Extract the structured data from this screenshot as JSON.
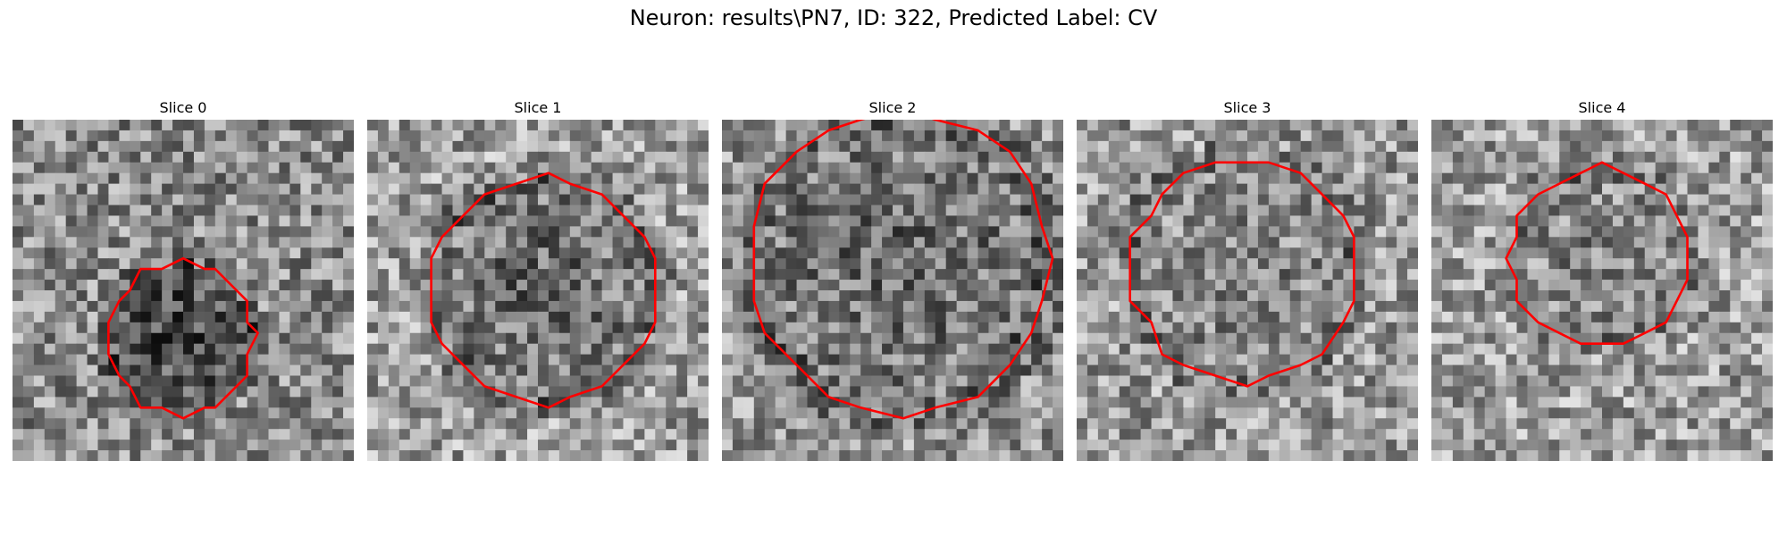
{
  "figure": {
    "title": "Neuron: results\\PN7, ID: 322, Predicted Label: CV"
  },
  "panels": [
    {
      "title": "Slice 0",
      "outline_color": "#ff0000"
    },
    {
      "title": "Slice 1",
      "outline_color": "#ff0000"
    },
    {
      "title": "Slice 2",
      "outline_color": "#ff0000"
    },
    {
      "title": "Slice 3",
      "outline_color": "#ff0000"
    },
    {
      "title": "Slice 4",
      "outline_color": "#ff0000"
    }
  ]
}
